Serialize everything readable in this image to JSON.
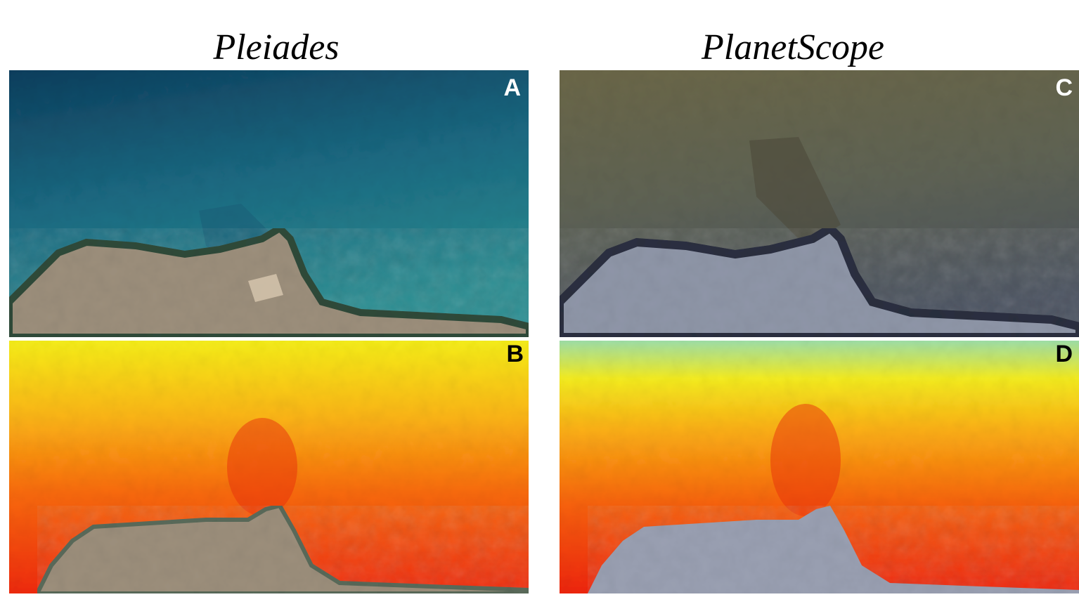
{
  "columns": [
    {
      "title": "Pleiades",
      "panels": [
        "A",
        "B"
      ]
    },
    {
      "title": "PlanetScope",
      "panels": [
        "C",
        "D"
      ]
    }
  ]
}
